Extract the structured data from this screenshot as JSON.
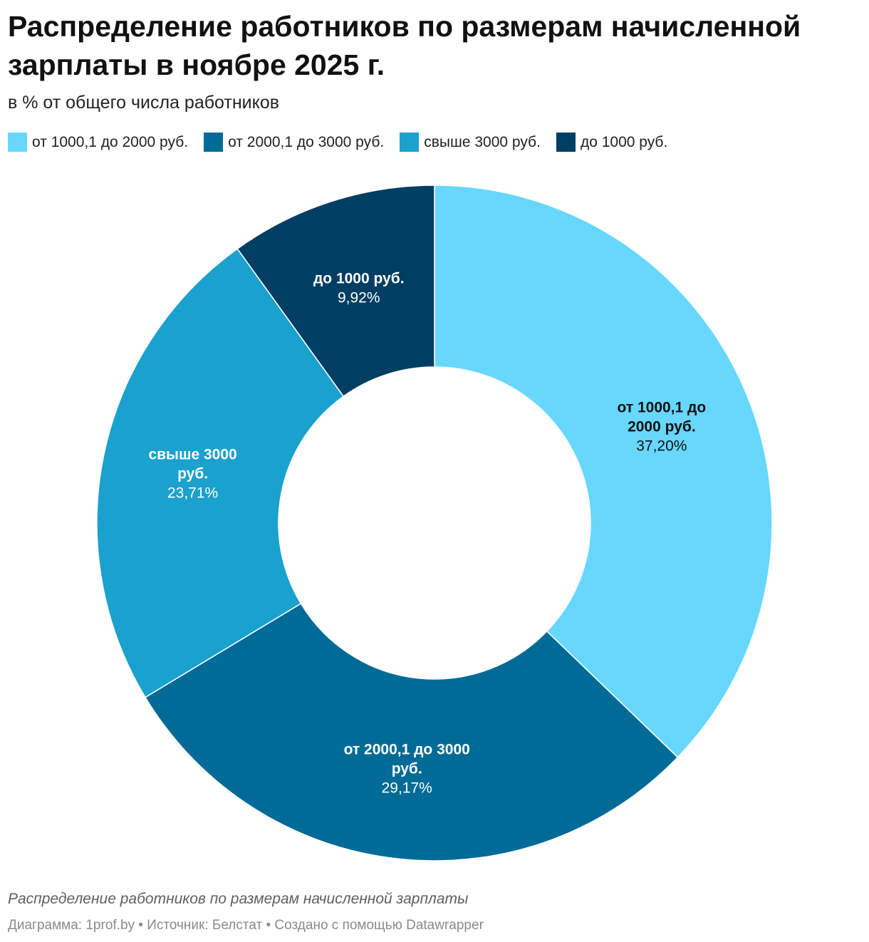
{
  "title": "Распределение работников по размерам начисленной зарплаты в ноябре 2025 г.",
  "subtitle": "в % от общего числа работников",
  "chart_data": {
    "type": "pie",
    "title": "Распределение работников по размерам начисленной зарплаты в ноябре 2025 г.",
    "subtitle": "в % от общего числа работников",
    "donut": true,
    "legend_position": "top",
    "categories": [
      "от 1000,1 до 2000 руб.",
      "от 2000,1 до 3000 руб.",
      "свыше 3000 руб.",
      "до 1000 руб."
    ],
    "values": [
      37.2,
      29.17,
      23.71,
      9.92
    ],
    "value_labels": [
      "37,20%",
      "29,17%",
      "23,71%",
      "9,92%"
    ],
    "slice_label_lines": [
      [
        "от 1000,1 до",
        "2000 руб."
      ],
      [
        "от 2000,1 до 3000",
        "руб."
      ],
      [
        "свыше 3000",
        "руб."
      ],
      [
        "до 1000 руб."
      ]
    ],
    "colors": [
      "#67d7fd",
      "#006b96",
      "#1aa1cd",
      "#003e63"
    ],
    "label_colors": [
      "#111111",
      "#ffffff",
      "#ffffff",
      "#ffffff"
    ]
  },
  "notes": "Распределение работников по размерам начисленной зарплаты",
  "byline": "Диаграмма: 1prof.by • Источник: Белстат • Создано с помощью Datawrapper"
}
